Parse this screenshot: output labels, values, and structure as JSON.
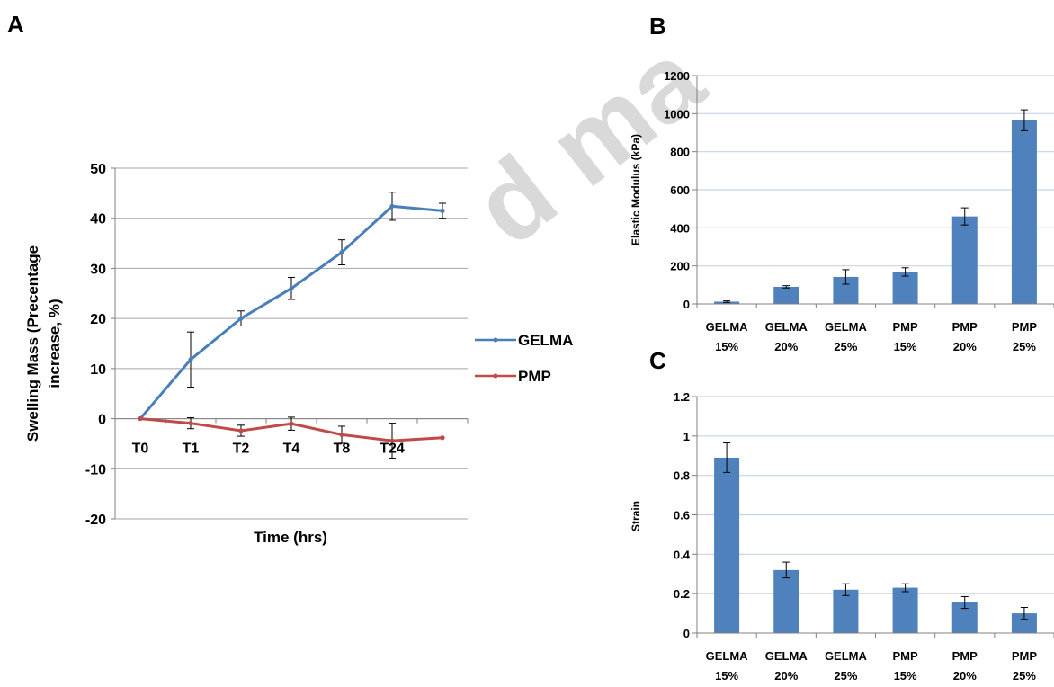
{
  "panels": {
    "a_label": "A",
    "b_label": "B",
    "c_label": "C"
  },
  "watermark_text": "d ma",
  "colors": {
    "gelma_line": "#4a7ebb",
    "pmp_line": "#be4b48",
    "bar_fill": "#4f81bd",
    "gridline": "#c6d4e8",
    "panel_a_grid": "#a6a6a6"
  },
  "chart_data": [
    {
      "id": "A",
      "type": "line",
      "x": [
        "T0",
        "T1",
        "T2",
        "T4",
        "T8",
        "T24",
        ""
      ],
      "series": [
        {
          "name": "GELMA",
          "color": "#4a7ebb",
          "values": [
            0,
            11.8,
            20,
            26,
            33.2,
            42.4,
            41.5
          ],
          "errors": [
            0,
            5.5,
            1.5,
            2.2,
            2.5,
            2.8,
            1.5
          ]
        },
        {
          "name": "PMP",
          "color": "#be4b48",
          "values": [
            0,
            -0.9,
            -2.4,
            -1,
            -3.2,
            -4.4,
            -3.8
          ],
          "errors": [
            0,
            1.1,
            1.1,
            1.3,
            1.7,
            3.5,
            0
          ]
        }
      ],
      "yticks": [
        "50",
        "40",
        "30",
        "20",
        "10",
        "0",
        "-10",
        "-20"
      ],
      "ylim": [
        -20,
        50
      ],
      "ylabel_lines": [
        "Swelling Mass (Precentage",
        "increase, %)"
      ],
      "xlabel": "Time (hrs)",
      "legend_position": "right",
      "grid": true
    },
    {
      "id": "B",
      "type": "bar",
      "categories": [
        [
          "GELMA",
          "15%"
        ],
        [
          "GELMA",
          "20%"
        ],
        [
          "GELMA",
          "25%"
        ],
        [
          "PMP",
          "15%"
        ],
        [
          "PMP",
          "20%"
        ],
        [
          "PMP",
          "25%"
        ]
      ],
      "values": [
        12,
        90,
        142,
        168,
        460,
        965
      ],
      "errors": [
        4,
        6,
        38,
        22,
        45,
        55
      ],
      "yticks": [
        "1200",
        "1000",
        "800",
        "600",
        "400",
        "200",
        "0"
      ],
      "ylim": [
        0,
        1200
      ],
      "ylabel": "Elastic Modulus (kPa)",
      "grid": true
    },
    {
      "id": "C",
      "type": "bar",
      "categories": [
        [
          "GELMA",
          "15%"
        ],
        [
          "GELMA",
          "20%"
        ],
        [
          "GELMA",
          "25%"
        ],
        [
          "PMP",
          "15%"
        ],
        [
          "PMP",
          "20%"
        ],
        [
          "PMP",
          "25%"
        ]
      ],
      "values": [
        0.89,
        0.32,
        0.22,
        0.23,
        0.155,
        0.1
      ],
      "errors": [
        0.075,
        0.04,
        0.03,
        0.02,
        0.03,
        0.03
      ],
      "yticks": [
        "1.2",
        "1",
        "0.8",
        "0.6",
        "0.4",
        "0.2",
        "0"
      ],
      "ylim": [
        0,
        1.2
      ],
      "ylabel": "Strain",
      "grid": true
    }
  ]
}
